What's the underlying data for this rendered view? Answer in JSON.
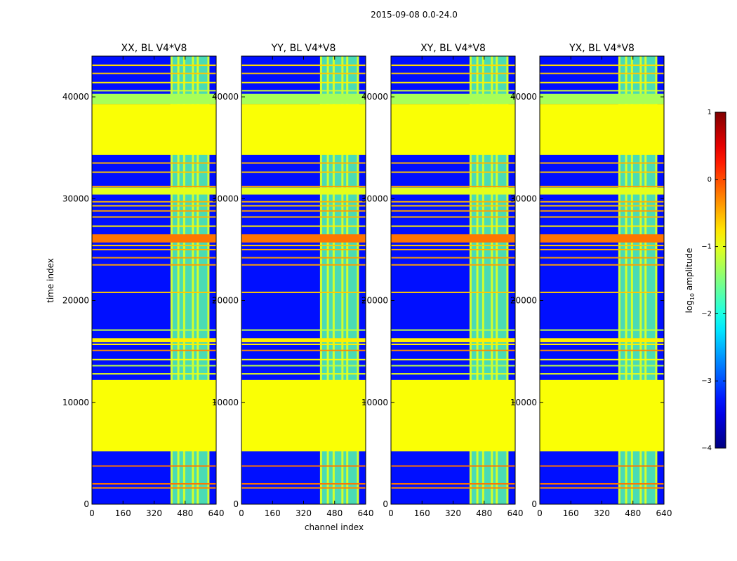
{
  "figure": {
    "suptitle": "2015-09-08 0.0-24.0",
    "xlabel": "channel index",
    "ylabel": "time index",
    "colorbar_label": "log10 amplitude",
    "colorbar_label_main": "log",
    "colorbar_label_sub": "10",
    "colorbar_label_rest": " amplitude"
  },
  "chart_data": {
    "type": "heatmap",
    "colormap": "jet",
    "xlim": [
      0,
      640
    ],
    "ylim": [
      0,
      44000
    ],
    "xticks": [
      0,
      160,
      320,
      480,
      640
    ],
    "yticks": [
      0,
      10000,
      20000,
      30000,
      40000
    ],
    "colorbar": {
      "range": [
        -4,
        1
      ],
      "ticks": [
        1,
        0,
        -1,
        -2,
        -3,
        -4
      ],
      "tick_labels": [
        "1",
        "0",
        "−1",
        "−2",
        "−3",
        "−4"
      ]
    },
    "panels": [
      {
        "title": "XX, BL V4*V8"
      },
      {
        "title": "YY, BL V4*V8"
      },
      {
        "title": "XY, BL V4*V8"
      },
      {
        "title": "YX, BL V4*V8"
      }
    ],
    "flagged_time_ranges": [
      [
        5200,
        12200
      ],
      [
        34300,
        39300
      ]
    ],
    "flag_value": -0.9,
    "background_value": -3.3,
    "rfi_channel_band": [
      405,
      600
    ],
    "rfi_band_value": -1.7,
    "bright_channel_lines": [
      410,
      445,
      475,
      520,
      545,
      600
    ],
    "hot_time_rows": [
      {
        "t": 1600,
        "v": -0.3
      },
      {
        "t": 2000,
        "v": -0.2
      },
      {
        "t": 3750,
        "v": -0.2
      },
      {
        "t": 12800,
        "v": -1.0
      },
      {
        "t": 13600,
        "v": -1.2
      },
      {
        "t": 14200,
        "v": -0.9
      },
      {
        "t": 15100,
        "v": -0.3
      },
      {
        "t": 15700,
        "v": -0.8
      },
      {
        "t": 16000,
        "v": -0.4
      },
      {
        "t": 17100,
        "v": -1.2
      },
      {
        "t": 20800,
        "v": -0.6
      },
      {
        "t": 23500,
        "v": -0.4
      },
      {
        "t": 24200,
        "v": -0.4
      },
      {
        "t": 25000,
        "v": -0.5
      },
      {
        "t": 25400,
        "v": -0.6
      },
      {
        "t": 26000,
        "v": -0.7
      },
      {
        "t": 26300,
        "v": -0.3
      },
      {
        "t": 27300,
        "v": -0.8
      },
      {
        "t": 28200,
        "v": -0.5
      },
      {
        "t": 28800,
        "v": -0.4
      },
      {
        "t": 29300,
        "v": -0.6
      },
      {
        "t": 29700,
        "v": -0.5
      },
      {
        "t": 31200,
        "v": -0.4
      },
      {
        "t": 32600,
        "v": -0.6
      },
      {
        "t": 33500,
        "v": -0.5
      },
      {
        "t": 40600,
        "v": -1.1
      },
      {
        "t": 41400,
        "v": -0.8
      },
      {
        "t": 42300,
        "v": -0.6
      },
      {
        "t": 43100,
        "v": -0.7
      }
    ],
    "solid_bands": [
      {
        "t0": 25700,
        "t1": 26500,
        "v": -0.2
      },
      {
        "t0": 30400,
        "t1": 31100,
        "v": -1.0
      },
      {
        "t0": 15900,
        "t1": 16300,
        "v": -0.8
      },
      {
        "t0": 39300,
        "t1": 40300,
        "v": -1.3
      }
    ]
  }
}
